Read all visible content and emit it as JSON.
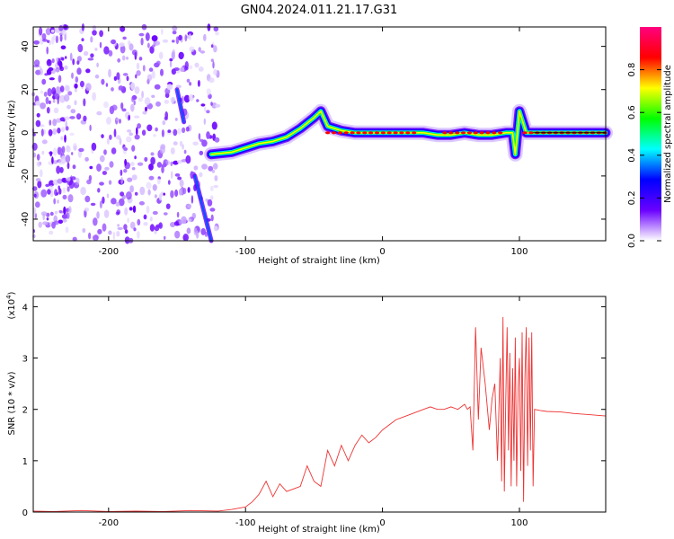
{
  "title": "GN04.2024.011.21.17.G31",
  "chart_data": [
    {
      "type": "heatmap",
      "title": "GN04.2024.011.21.17.G31",
      "xlabel": "Height of straight line (km)",
      "ylabel": "Frequency (Hz)",
      "xlim": [
        -255,
        163
      ],
      "ylim": [
        -50,
        49
      ],
      "xticks": [
        -200,
        -100,
        0,
        100
      ],
      "xtick_labels": [
        "-200",
        "-100",
        "0",
        "100"
      ],
      "yticks": [
        -40,
        -20,
        0,
        20,
        40
      ],
      "ytick_labels": [
        "-40",
        "-20",
        "0",
        "20",
        "40"
      ],
      "colorbar": {
        "label": "Normalized spectral amplitude",
        "range": [
          0.0,
          1.0
        ],
        "ticks": [
          0.0,
          0.2,
          0.4,
          0.6,
          0.8
        ],
        "tick_labels": [
          "0.0",
          "0.2",
          "0.4",
          "0.6",
          "0.8"
        ],
        "colormap": [
          "#ffffff",
          "#6a00ff",
          "#0000ff",
          "#00ffff",
          "#00ff00",
          "#ffff00",
          "#ff0000",
          "#ff0080"
        ]
      },
      "ridge": {
        "name": "Frequency ridge",
        "x": [
          -125,
          -110,
          -100,
          -90,
          -80,
          -70,
          -60,
          -50,
          -45,
          -40,
          -30,
          -20,
          -10,
          0,
          10,
          20,
          30,
          40,
          50,
          60,
          70,
          80,
          90,
          95,
          97,
          100,
          105,
          110,
          120,
          130,
          140,
          150,
          163
        ],
        "y": [
          -10,
          -9,
          -7,
          -5,
          -4,
          -2,
          2,
          7,
          10,
          3,
          1,
          0,
          0,
          0,
          0,
          0,
          0,
          -1,
          -1,
          0,
          -1,
          -1,
          0,
          0,
          -10,
          10,
          0,
          0,
          0,
          0,
          0,
          0,
          0
        ]
      },
      "noise_region": [
        -255,
        -120
      ],
      "streaks": [
        {
          "x": [
            -150,
            -145
          ],
          "y": [
            20,
            5
          ]
        },
        {
          "x": [
            -137,
            -125
          ],
          "y": [
            -20,
            -50
          ]
        }
      ]
    },
    {
      "type": "line",
      "xlabel": "Height of straight line (km)",
      "ylabel": "SNR (10 * v/v)",
      "yscale_label": "(x10",
      "yscale_exponent": "4",
      "yscale_suffix": ")",
      "xlim": [
        -255,
        163
      ],
      "ylim": [
        0,
        4.2
      ],
      "xticks": [
        -200,
        -100,
        0,
        100
      ],
      "xtick_labels": [
        "-200",
        "-100",
        "0",
        "100"
      ],
      "yticks": [
        0,
        1,
        2,
        3,
        4
      ],
      "ytick_labels": [
        "0",
        "1",
        "2",
        "3",
        "4"
      ],
      "color": "#ee3333",
      "series": [
        {
          "x": [
            -255,
            -240,
            -220,
            -200,
            -180,
            -160,
            -140,
            -120,
            -110,
            -100,
            -95,
            -90,
            -85,
            -80,
            -75,
            -70,
            -65,
            -60,
            -55,
            -50,
            -45,
            -40,
            -35,
            -30,
            -25,
            -20,
            -15,
            -10,
            -5,
            0,
            5,
            10,
            15,
            20,
            25,
            30,
            35,
            40,
            45,
            50,
            55,
            60,
            62,
            64,
            66,
            68,
            70,
            72,
            75,
            78,
            80,
            82,
            84,
            86,
            87,
            88,
            89,
            90,
            91,
            92,
            93,
            94,
            95,
            96,
            97,
            98,
            99,
            100,
            101,
            102,
            103,
            104,
            105,
            106,
            107,
            108,
            109,
            110,
            111,
            115,
            120,
            130,
            140,
            150,
            163
          ],
          "y": [
            0.02,
            0.01,
            0.03,
            0.01,
            0.02,
            0.01,
            0.03,
            0.02,
            0.05,
            0.1,
            0.2,
            0.35,
            0.6,
            0.3,
            0.55,
            0.4,
            0.45,
            0.5,
            0.9,
            0.6,
            0.5,
            1.2,
            0.9,
            1.3,
            1.0,
            1.3,
            1.5,
            1.35,
            1.45,
            1.6,
            1.7,
            1.8,
            1.85,
            1.9,
            1.95,
            2.0,
            2.05,
            2.0,
            2.0,
            2.05,
            2.0,
            2.1,
            2.0,
            2.05,
            1.2,
            3.6,
            1.8,
            3.2,
            2.5,
            1.6,
            2.2,
            2.5,
            1.0,
            3.0,
            0.6,
            3.8,
            0.4,
            2.2,
            3.6,
            1.2,
            3.1,
            0.5,
            2.8,
            1.0,
            3.4,
            0.5,
            2.4,
            3.0,
            0.8,
            3.5,
            0.2,
            2.6,
            3.6,
            0.9,
            3.4,
            1.2,
            3.5,
            0.5,
            2.0,
            1.98,
            1.96,
            1.95,
            1.92,
            1.9,
            1.87
          ]
        }
      ]
    }
  ]
}
